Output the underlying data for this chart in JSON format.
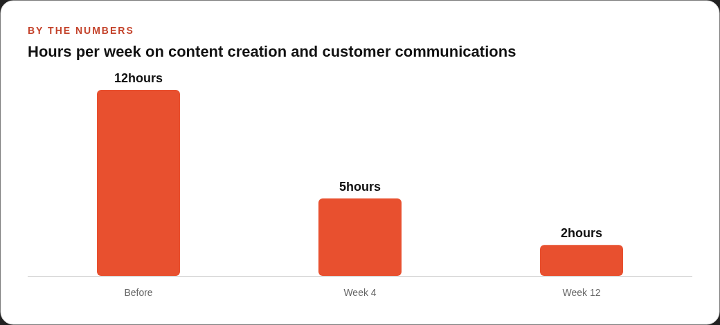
{
  "chart_data": {
    "type": "bar",
    "subtitle": "BY THE NUMBERS",
    "title": "Hours per week on content creation and customer communications",
    "categories": [
      "Before",
      "Week 4",
      "Week 12"
    ],
    "values": [
      12,
      5,
      2
    ],
    "value_labels": [
      "12hours",
      "5hours",
      "2hours"
    ],
    "color": "#e8502f"
  }
}
